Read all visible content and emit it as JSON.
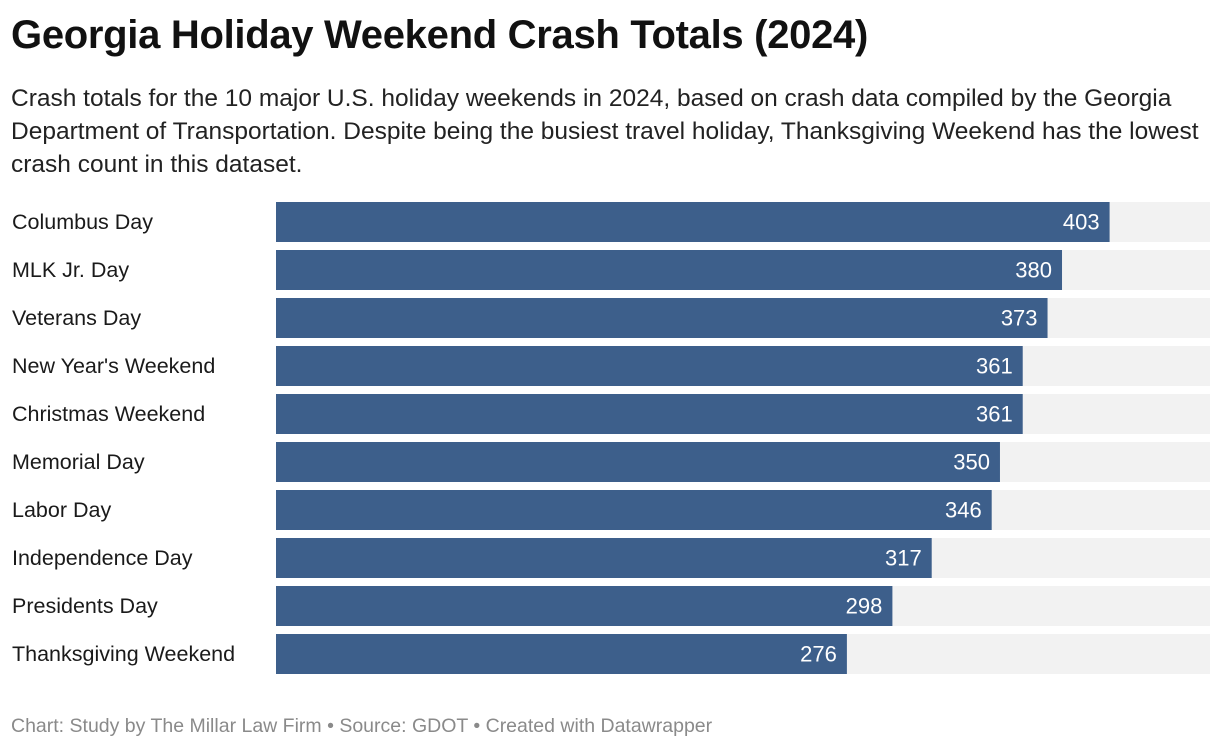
{
  "title": "Georgia Holiday Weekend Crash Totals (2024)",
  "subtitle": "Crash totals for the 10 major U.S. holiday weekends in 2024, based on crash data compiled by the Georgia Department of Transportation. Despite being the busiest travel holiday, Thanksgiving Weekend has the lowest crash count in this dataset.",
  "footer": {
    "chart_credit": "Chart: Study by The Millar Law Firm",
    "separator_1": " • ",
    "source": "Source: GDOT",
    "separator_2": " • ",
    "created_with": "Created with Datawrapper"
  },
  "colors": {
    "bar": "#3d5f8b",
    "track": "#f2f2f2",
    "value_label": "#ffffff",
    "category_label": "#1a1a1a"
  },
  "chart_data": {
    "type": "bar",
    "orientation": "horizontal",
    "title": "Georgia Holiday Weekend Crash Totals (2024)",
    "xlabel": "",
    "ylabel": "",
    "xlim": [
      0,
      403
    ],
    "grid": false,
    "legend": "none",
    "categories": [
      "Columbus Day",
      "MLK Jr. Day",
      "Veterans Day",
      "New Year's Weekend",
      "Christmas Weekend",
      "Memorial Day",
      "Labor Day",
      "Independence Day",
      "Presidents Day",
      "Thanksgiving Weekend"
    ],
    "values": [
      403,
      380,
      373,
      361,
      361,
      350,
      346,
      317,
      298,
      276
    ]
  }
}
